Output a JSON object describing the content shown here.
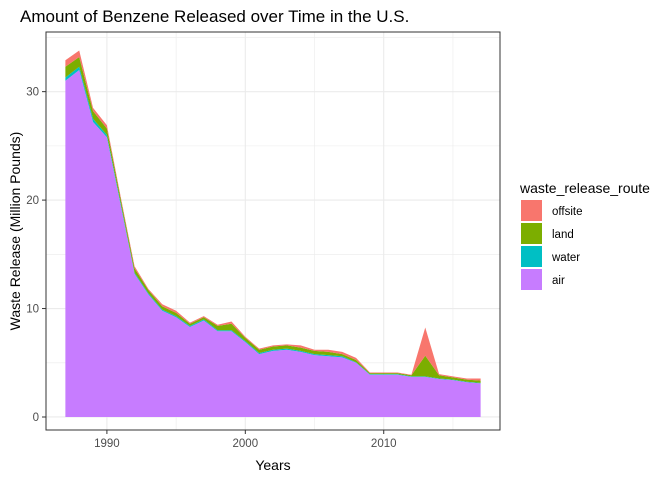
{
  "chart_data": {
    "type": "area",
    "stacked": true,
    "title": "Amount of Benzene Released over Time in the U.S.",
    "xlabel": "Years",
    "ylabel": "Waste Release (Million Pounds)",
    "xlim": [
      1985.6,
      2018.4
    ],
    "ylim": [
      -1.2,
      35.5
    ],
    "xticks": [
      1990,
      2000,
      2010
    ],
    "yticks": [
      0,
      10,
      20,
      30
    ],
    "grid": true,
    "legend": {
      "title": "waste_release_route",
      "position": "right",
      "entries": [
        "offsite",
        "land",
        "water",
        "air"
      ]
    },
    "x": [
      1987,
      1988,
      1989,
      1990,
      1991,
      1992,
      1993,
      1994,
      1995,
      1996,
      1997,
      1998,
      1999,
      2000,
      2001,
      2002,
      2003,
      2004,
      2005,
      2006,
      2007,
      2008,
      2009,
      2010,
      2011,
      2012,
      2013,
      2014,
      2015,
      2016,
      2017
    ],
    "series": [
      {
        "name": "air",
        "color": "#C77CFF",
        "values": [
          31.0,
          32.0,
          27.2,
          25.8,
          19.5,
          13.2,
          11.3,
          9.8,
          9.2,
          8.3,
          8.9,
          7.9,
          7.9,
          6.9,
          5.8,
          6.1,
          6.2,
          6.0,
          5.7,
          5.6,
          5.5,
          5.0,
          3.9,
          3.9,
          3.9,
          3.7,
          3.7,
          3.5,
          3.4,
          3.2,
          3.1
        ]
      },
      {
        "name": "water",
        "color": "#00BFC4",
        "values": [
          0.3,
          0.3,
          0.3,
          0.2,
          0.2,
          0.1,
          0.1,
          0.1,
          0.1,
          0.1,
          0.1,
          0.1,
          0.1,
          0.1,
          0.1,
          0.1,
          0.1,
          0.1,
          0.1,
          0.1,
          0.1,
          0.05,
          0.05,
          0.05,
          0.05,
          0.05,
          0.05,
          0.05,
          0.05,
          0.05,
          0.05
        ]
      },
      {
        "name": "land",
        "color": "#7CAE00",
        "values": [
          1.0,
          0.9,
          0.7,
          0.6,
          0.4,
          0.4,
          0.3,
          0.3,
          0.3,
          0.2,
          0.2,
          0.4,
          0.6,
          0.3,
          0.3,
          0.3,
          0.3,
          0.3,
          0.3,
          0.3,
          0.2,
          0.2,
          0.1,
          0.1,
          0.1,
          0.1,
          1.9,
          0.3,
          0.2,
          0.2,
          0.2
        ]
      },
      {
        "name": "offsite",
        "color": "#F8766D",
        "values": [
          0.6,
          0.6,
          0.3,
          0.3,
          0.2,
          0.2,
          0.1,
          0.2,
          0.2,
          0.1,
          0.1,
          0.1,
          0.2,
          0.1,
          0.1,
          0.1,
          0.1,
          0.2,
          0.1,
          0.2,
          0.2,
          0.2,
          0.05,
          0.05,
          0.05,
          0.05,
          2.6,
          0.1,
          0.1,
          0.1,
          0.2
        ]
      }
    ]
  }
}
